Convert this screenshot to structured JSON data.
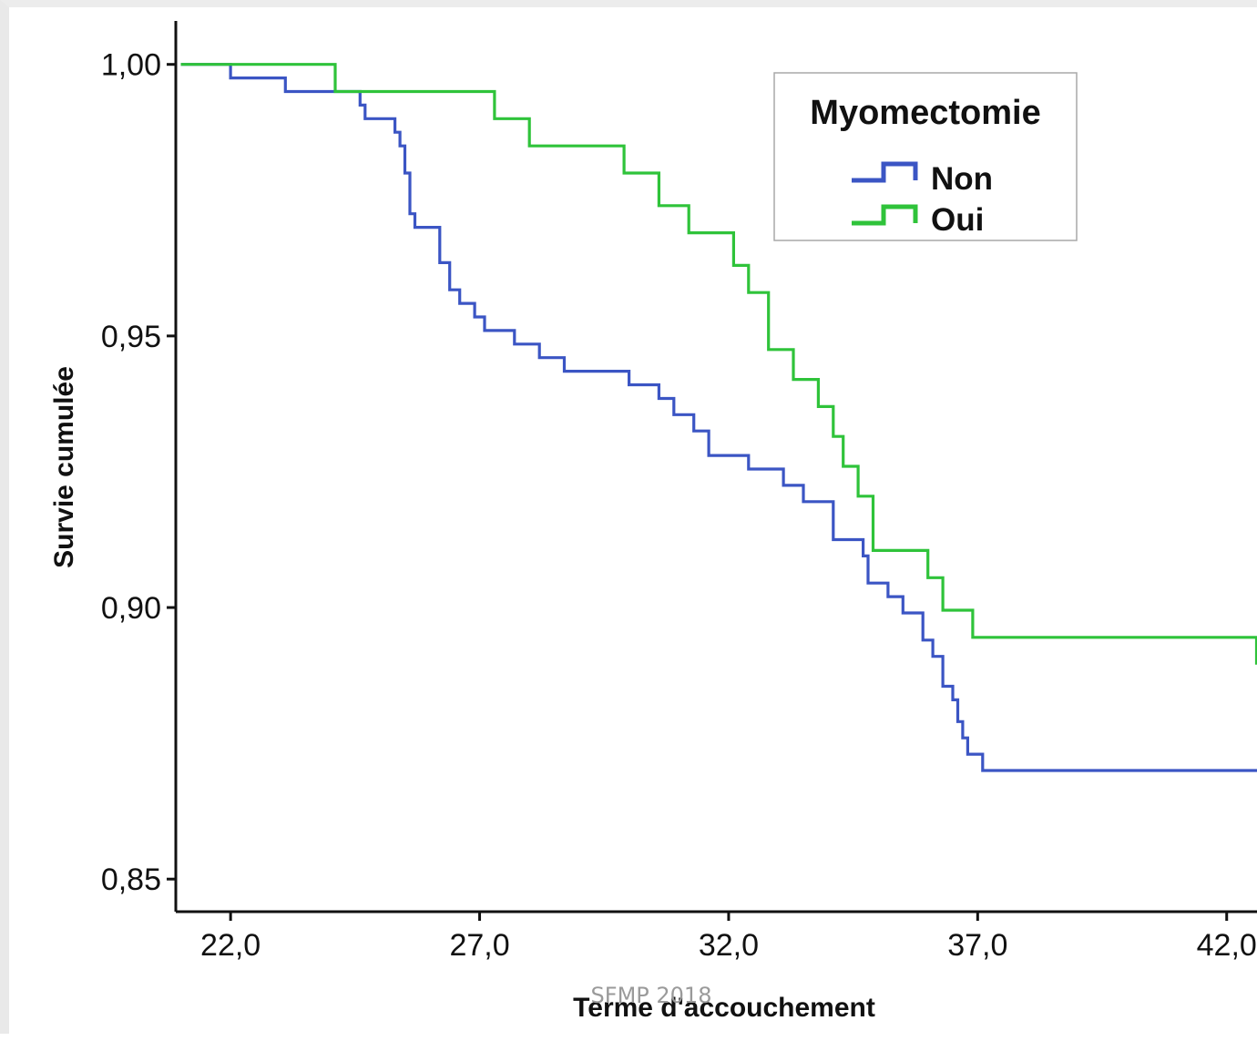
{
  "chart_data": {
    "type": "line",
    "step": true,
    "xlabel": "Terme d'accouchement",
    "ylabel": "Survie cumulée",
    "xlim": [
      20.9,
      42.7
    ],
    "ylim": [
      0.844,
      1.008
    ],
    "x_ticks": [
      22,
      27,
      32,
      37,
      42
    ],
    "x_tick_labels": [
      "22,0",
      "27,0",
      "32,0",
      "37,0",
      "42,0"
    ],
    "y_ticks": [
      0.85,
      0.9,
      0.95,
      1.0
    ],
    "y_tick_labels": [
      "0,85",
      "0,90",
      "0,95",
      "1,00"
    ],
    "grid": false,
    "legend": {
      "title": "Myomectomie",
      "placement": "top-right"
    },
    "series": [
      {
        "name": "Non",
        "color": "#3b55c4",
        "x": [
          21.0,
          22.0,
          23.1,
          24.6,
          24.7,
          25.3,
          25.4,
          25.5,
          25.6,
          25.7,
          25.8,
          26.2,
          26.4,
          26.6,
          26.9,
          27.1,
          27.3,
          27.7,
          28.2,
          28.7,
          29.3,
          30.0,
          30.6,
          30.9,
          31.3,
          31.6,
          32.2,
          32.4,
          33.1,
          33.5,
          34.1,
          34.7,
          34.8,
          35.2,
          35.5,
          35.9,
          36.1,
          36.3,
          36.5,
          36.6,
          36.7,
          36.8,
          37.1,
          42.8
        ],
        "y": [
          1.0,
          0.9975,
          0.995,
          0.9925,
          0.99,
          0.9875,
          0.985,
          0.98,
          0.9725,
          0.97,
          0.97,
          0.9635,
          0.9585,
          0.956,
          0.9535,
          0.951,
          0.951,
          0.9485,
          0.946,
          0.9435,
          0.9435,
          0.941,
          0.9385,
          0.9355,
          0.9325,
          0.928,
          0.928,
          0.9255,
          0.9225,
          0.9195,
          0.9125,
          0.9095,
          0.9045,
          0.902,
          0.899,
          0.894,
          0.891,
          0.8855,
          0.883,
          0.879,
          0.876,
          0.873,
          0.87,
          0.87
        ]
      },
      {
        "name": "Oui",
        "color": "#2fc33a",
        "x": [
          21.0,
          24.1,
          27.0,
          27.3,
          28.0,
          29.9,
          30.6,
          31.2,
          32.1,
          32.4,
          32.8,
          33.3,
          33.8,
          34.1,
          34.3,
          34.6,
          34.9,
          36.0,
          36.3,
          36.9,
          42.6
        ],
        "y": [
          1.0,
          0.995,
          0.995,
          0.99,
          0.985,
          0.98,
          0.974,
          0.969,
          0.963,
          0.958,
          0.9475,
          0.942,
          0.937,
          0.9315,
          0.926,
          0.9205,
          0.9105,
          0.9055,
          0.8995,
          0.8945,
          0.8895
        ]
      }
    ]
  },
  "watermark": "SFMP 2018"
}
